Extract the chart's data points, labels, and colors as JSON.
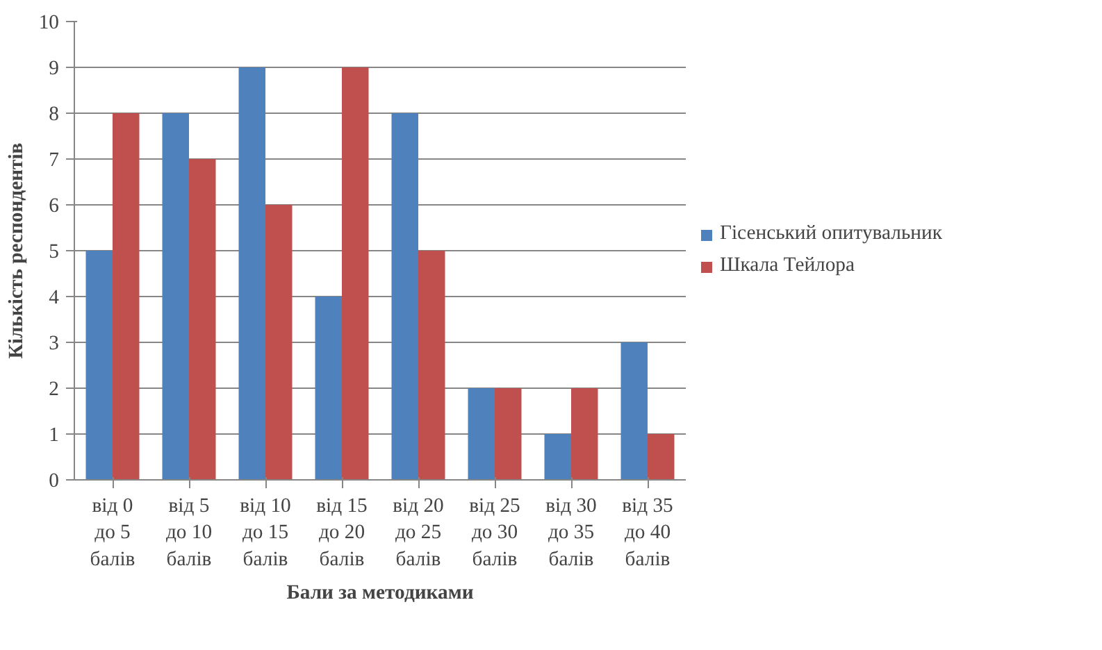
{
  "chart_data": {
    "type": "bar",
    "xlabel": "Бали за методиками",
    "ylabel": "Кількість респондентів",
    "categories": [
      "від 0\nдо 5\nбалів",
      "від 5\nдо 10\nбалів",
      "від 10\nдо 15\nбалів",
      "від 15\nдо 20\nбалів",
      "від 20\nдо 25\nбалів",
      "від 25\nдо 30\nбалів",
      "від 30\nдо 35\nбалів",
      "від 35\nдо 40\nбалів"
    ],
    "series": [
      {
        "name": "Гісенський опитувальник",
        "color": "#4f81bd",
        "values": [
          5,
          8,
          9,
          4,
          8,
          2,
          1,
          3
        ]
      },
      {
        "name": "Шкала Тейлора",
        "color": "#c0504d",
        "values": [
          8,
          7,
          6,
          9,
          5,
          2,
          2,
          1
        ]
      }
    ],
    "ylim": [
      0,
      10
    ],
    "yticks": [
      0,
      1,
      2,
      3,
      4,
      5,
      6,
      7,
      8,
      9,
      10
    ],
    "grid": "y",
    "legend": "right"
  }
}
